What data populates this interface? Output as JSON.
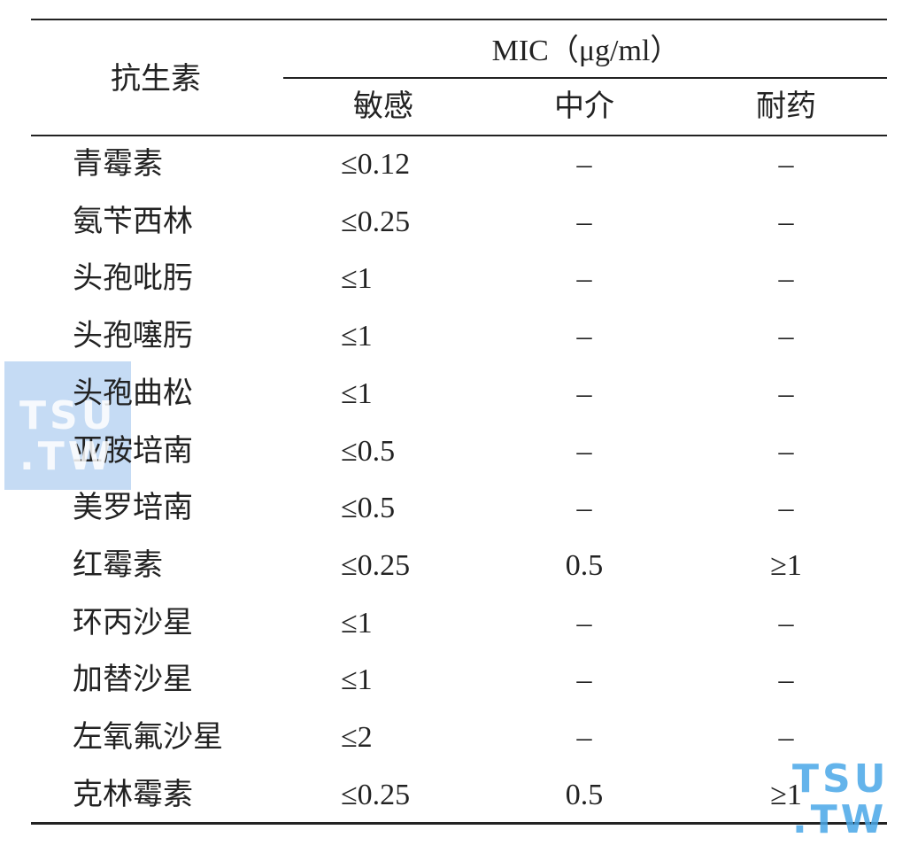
{
  "table": {
    "header": {
      "antibiotic": "抗生素",
      "mic": "MIC（μg/ml）",
      "columns": [
        "敏感",
        "中介",
        "耐药"
      ]
    },
    "rows": [
      [
        "青霉素",
        "≤0.12",
        "–",
        "–"
      ],
      [
        "氨苄西林",
        "≤0.25",
        "–",
        "–"
      ],
      [
        "头孢吡肟",
        "≤1",
        "–",
        "–"
      ],
      [
        "头孢噻肟",
        "≤1",
        "–",
        "–"
      ],
      [
        "头孢曲松",
        "≤1",
        "–",
        "–"
      ],
      [
        "亚胺培南",
        "≤0.5",
        "–",
        "–"
      ],
      [
        "美罗培南",
        "≤0.5",
        "–",
        "–"
      ],
      [
        "红霉素",
        "≤0.25",
        "0.5",
        "≥1"
      ],
      [
        "环丙沙星",
        "≤1",
        "–",
        "–"
      ],
      [
        "加替沙星",
        "≤1",
        "–",
        "–"
      ],
      [
        "左氧氟沙星",
        "≤2",
        "–",
        "–"
      ],
      [
        "克林霉素",
        "≤0.25",
        "0.5",
        "≥1"
      ]
    ]
  },
  "watermarks": [
    {
      "top": "TSU",
      "bottom": ".TW"
    },
    {
      "top": "TSU",
      "bottom": ".TW"
    }
  ]
}
